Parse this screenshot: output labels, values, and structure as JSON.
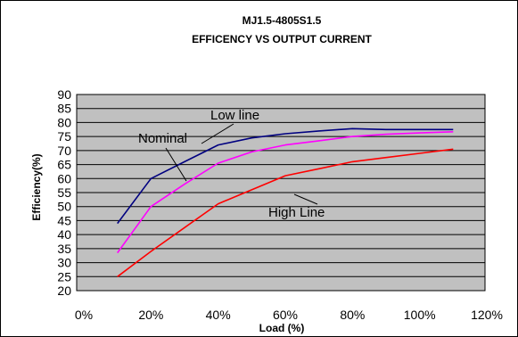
{
  "chart_data": {
    "type": "line",
    "title": "MJ1.5-4805S1.5",
    "subtitle": "EFFICENCY VS OUTPUT CURRENT",
    "xlabel": "Load (%)",
    "ylabel": "Efficiency(%)",
    "xlim": [
      0,
      120
    ],
    "ylim": [
      20,
      90
    ],
    "x_ticks": [
      "0%",
      "20%",
      "40%",
      "60%",
      "80%",
      "100%",
      "120%"
    ],
    "y_ticks": [
      "20",
      "25",
      "30",
      "35",
      "40",
      "45",
      "50",
      "55",
      "60",
      "65",
      "70",
      "75",
      "80",
      "85",
      "90"
    ],
    "plot_background": "#c0c0c0",
    "grid": true,
    "series": [
      {
        "name": "Low line",
        "color": "#000080",
        "x": [
          10,
          20,
          30,
          40,
          50,
          60,
          70,
          80,
          90,
          100,
          110
        ],
        "y": [
          44,
          60,
          66,
          72,
          74.5,
          76,
          77,
          77.8,
          77.5,
          77.5,
          77.5
        ]
      },
      {
        "name": "Nominal",
        "color": "#ff00ff",
        "x": [
          10,
          20,
          30,
          40,
          50,
          60,
          70,
          80,
          90,
          100,
          110
        ],
        "y": [
          33.5,
          50,
          58,
          65.5,
          69.5,
          72,
          73.5,
          75,
          75.8,
          76.3,
          76.7
        ]
      },
      {
        "name": "High Line",
        "color": "#ff0000",
        "x": [
          10,
          20,
          30,
          40,
          50,
          60,
          70,
          80,
          90,
          100,
          110
        ],
        "y": [
          25,
          34,
          42.5,
          51,
          56,
          61,
          63.5,
          66,
          67.5,
          69,
          70.5
        ]
      }
    ]
  }
}
